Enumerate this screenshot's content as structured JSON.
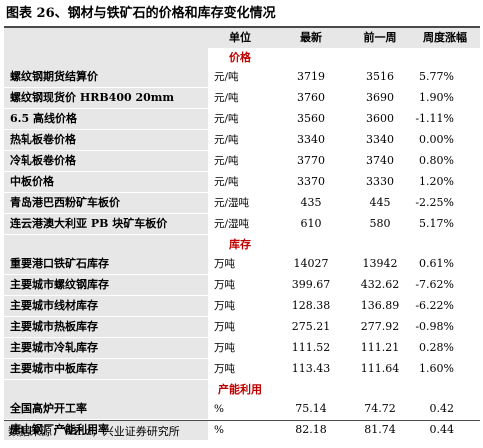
{
  "title": "图表 26、钢材与铁矿石的价格和库存变化情况",
  "headers": [
    "",
    "单位",
    "最新",
    "前一周",
    "周度涨幅"
  ],
  "sections": [
    {
      "label": "价格",
      "rows": [
        {
          "name": "螺纹钢期货结算价",
          "unit": "元/吨",
          "latest": "3719",
          "prev": "3516",
          "change": "5.77%"
        },
        {
          "name": "螺纹钢现货价 HRB400 20mm",
          "unit": "元/吨",
          "latest": "3760",
          "prev": "3690",
          "change": "1.90%"
        },
        {
          "name": "6.5 高线价格",
          "unit": "元/吨",
          "latest": "3560",
          "prev": "3600",
          "change": "-1.11%"
        },
        {
          "name": "热轧板卷价格",
          "unit": "元/吨",
          "latest": "3340",
          "prev": "3340",
          "change": "0.00%"
        },
        {
          "name": "冷轧板卷价格",
          "unit": "元/吨",
          "latest": "3770",
          "prev": "3740",
          "change": "0.80%"
        },
        {
          "name": "中板价格",
          "unit": "元/吨",
          "latest": "3370",
          "prev": "3330",
          "change": "1.20%"
        },
        {
          "name": "青岛港巴西粉矿车板价",
          "unit": "元/湿吨",
          "latest": "435",
          "prev": "445",
          "change": "-2.25%"
        },
        {
          "name": "连云港澳大利亚 PB 块矿车板价",
          "unit": "元/湿吨",
          "latest": "610",
          "prev": "580",
          "change": "5.17%"
        }
      ]
    },
    {
      "label": "库存",
      "rows": [
        {
          "name": "重要港口铁矿石库存",
          "unit": "万吨",
          "latest": "14027",
          "prev": "13942",
          "change": "0.61%"
        },
        {
          "name": "主要城市螺纹钢库存",
          "unit": "万吨",
          "latest": "399.67",
          "prev": "432.62",
          "change": "-7.62%"
        },
        {
          "name": "主要城市线材库存",
          "unit": "万吨",
          "latest": "128.38",
          "prev": "136.89",
          "change": "-6.22%"
        },
        {
          "name": "主要城市热板库存",
          "unit": "万吨",
          "latest": "275.21",
          "prev": "277.92",
          "change": "-0.98%"
        },
        {
          "name": "主要城市冷轧库存",
          "unit": "万吨",
          "latest": "111.52",
          "prev": "111.21",
          "change": "0.28%"
        },
        {
          "name": "主要城市中板库存",
          "unit": "万吨",
          "latest": "113.43",
          "prev": "111.64",
          "change": "1.60%"
        }
      ]
    },
    {
      "label": "产能利用",
      "rows": [
        {
          "name": "全国高炉开工率",
          "unit": "%",
          "latest": "75.14",
          "prev": "74.72",
          "change": "0.42"
        },
        {
          "name": "唐山钢厂产能利用率",
          "unit": "%",
          "latest": "82.18",
          "prev": "81.74",
          "change": "0.44"
        }
      ]
    }
  ],
  "source": "数据来源：Wind，兴业证券研究所",
  "colors": {
    "section_label": "#c00000",
    "shade": "#e7e7e7",
    "rule": "#4a4a4a"
  }
}
